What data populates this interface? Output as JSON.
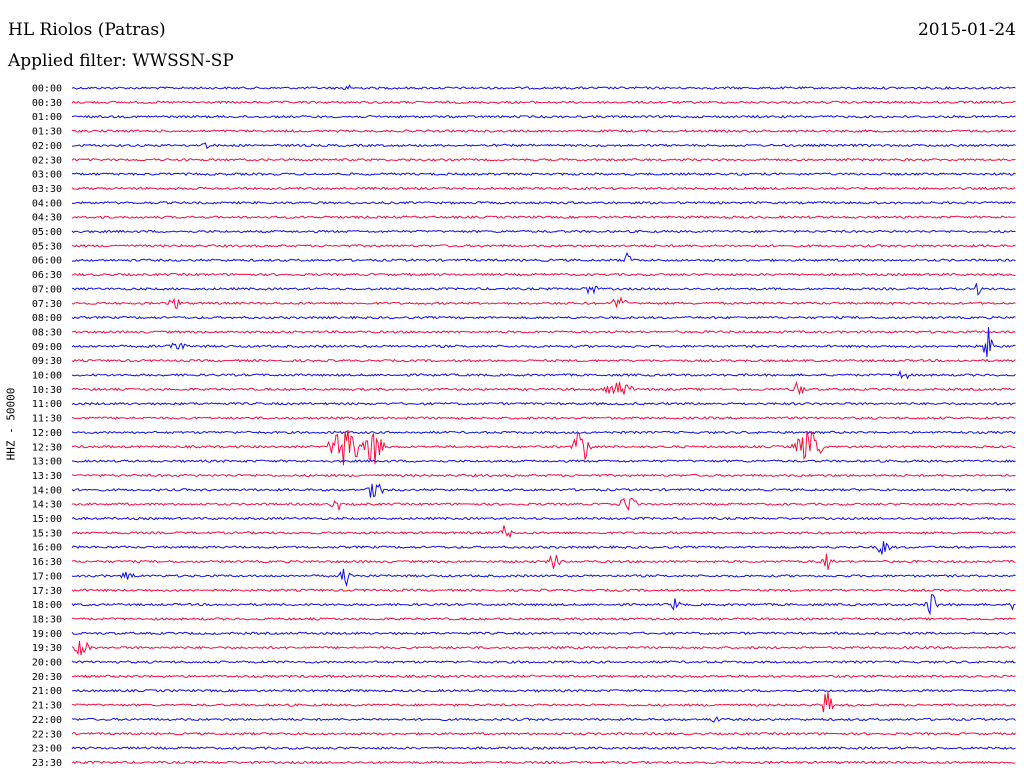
{
  "header": {
    "station": "HL Riolos (Patras)",
    "date": "2015-01-24",
    "filter": "Applied filter: WWSSN-SP"
  },
  "side_label": "HHZ - 50000",
  "colors": {
    "odd_trace": "#1010e0",
    "even_trace": "#f01040"
  },
  "chart_data": {
    "type": "line",
    "title": "HL Riolos (Patras)",
    "subtitle": "Applied filter: WWSSN-SP",
    "ylabel": "HHZ - 50000",
    "xlabel": "",
    "grid": false,
    "row_labels": [
      "00:00",
      "00:30",
      "01:00",
      "01:30",
      "02:00",
      "02:30",
      "03:00",
      "03:30",
      "04:00",
      "04:30",
      "05:00",
      "05:30",
      "06:00",
      "06:30",
      "07:00",
      "07:30",
      "08:00",
      "08:30",
      "09:00",
      "09:30",
      "10:00",
      "10:30",
      "11:00",
      "11:30",
      "12:00",
      "12:30",
      "13:00",
      "13:30",
      "14:00",
      "14:30",
      "15:00",
      "15:30",
      "16:00",
      "16:30",
      "17:00",
      "17:30",
      "18:00",
      "18:30",
      "19:00",
      "19:30",
      "20:00",
      "20:30",
      "21:00",
      "21:30",
      "22:00",
      "22:30",
      "23:00",
      "23:30"
    ],
    "row_colors": [
      "blue",
      "red",
      "blue",
      "red",
      "blue",
      "red",
      "blue",
      "red",
      "blue",
      "red",
      "blue",
      "red",
      "blue",
      "red",
      "blue",
      "red",
      "blue",
      "red",
      "blue",
      "red",
      "blue",
      "red",
      "blue",
      "red",
      "blue",
      "red",
      "blue",
      "red",
      "blue",
      "red",
      "blue",
      "red",
      "blue",
      "red",
      "blue",
      "red",
      "blue",
      "red",
      "blue",
      "red",
      "blue",
      "red",
      "blue",
      "red",
      "blue",
      "red",
      "blue",
      "red"
    ],
    "events": [
      {
        "row": "00:00",
        "t": 0.29,
        "amp": 4,
        "dur": 0.01
      },
      {
        "row": "02:00",
        "t": 0.14,
        "amp": 4,
        "dur": 0.01
      },
      {
        "row": "06:00",
        "t": 0.59,
        "amp": 10,
        "dur": 0.005
      },
      {
        "row": "07:00",
        "t": 0.55,
        "amp": 7,
        "dur": 0.01
      },
      {
        "row": "07:00",
        "t": 0.96,
        "amp": 7,
        "dur": 0.005
      },
      {
        "row": "07:30",
        "t": 0.11,
        "amp": 6,
        "dur": 0.02
      },
      {
        "row": "07:30",
        "t": 0.58,
        "amp": 6,
        "dur": 0.02
      },
      {
        "row": "09:00",
        "t": 0.11,
        "amp": 6,
        "dur": 0.02
      },
      {
        "row": "09:00",
        "t": 0.97,
        "amp": 25,
        "dur": 0.005
      },
      {
        "row": "10:00",
        "t": 0.88,
        "amp": 6,
        "dur": 0.01
      },
      {
        "row": "10:30",
        "t": 0.58,
        "amp": 8,
        "dur": 0.03
      },
      {
        "row": "10:30",
        "t": 0.77,
        "amp": 12,
        "dur": 0.005
      },
      {
        "row": "12:30",
        "t": 0.29,
        "amp": 22,
        "dur": 0.04
      },
      {
        "row": "12:30",
        "t": 0.32,
        "amp": 22,
        "dur": 0.02
      },
      {
        "row": "12:30",
        "t": 0.54,
        "amp": 18,
        "dur": 0.02
      },
      {
        "row": "12:30",
        "t": 0.78,
        "amp": 18,
        "dur": 0.03
      },
      {
        "row": "14:00",
        "t": 0.32,
        "amp": 10,
        "dur": 0.02
      },
      {
        "row": "14:30",
        "t": 0.28,
        "amp": 9,
        "dur": 0.005
      },
      {
        "row": "14:30",
        "t": 0.59,
        "amp": 9,
        "dur": 0.02
      },
      {
        "row": "15:30",
        "t": 0.46,
        "amp": 14,
        "dur": 0.01
      },
      {
        "row": "16:00",
        "t": 0.86,
        "amp": 10,
        "dur": 0.01
      },
      {
        "row": "16:30",
        "t": 0.51,
        "amp": 12,
        "dur": 0.01
      },
      {
        "row": "16:30",
        "t": 0.8,
        "amp": 10,
        "dur": 0.01
      },
      {
        "row": "17:00",
        "t": 0.06,
        "amp": 6,
        "dur": 0.01
      },
      {
        "row": "17:00",
        "t": 0.29,
        "amp": 12,
        "dur": 0.01
      },
      {
        "row": "18:00",
        "t": 0.64,
        "amp": 10,
        "dur": 0.005
      },
      {
        "row": "18:00",
        "t": 0.91,
        "amp": 14,
        "dur": 0.01
      },
      {
        "row": "18:00",
        "t": 1.0,
        "amp": 14,
        "dur": 0.005
      },
      {
        "row": "19:30",
        "t": 0.01,
        "amp": 10,
        "dur": 0.015
      },
      {
        "row": "21:30",
        "t": 0.8,
        "amp": 20,
        "dur": 0.005
      },
      {
        "row": "22:00",
        "t": 0.68,
        "amp": 5,
        "dur": 0.005
      }
    ]
  }
}
